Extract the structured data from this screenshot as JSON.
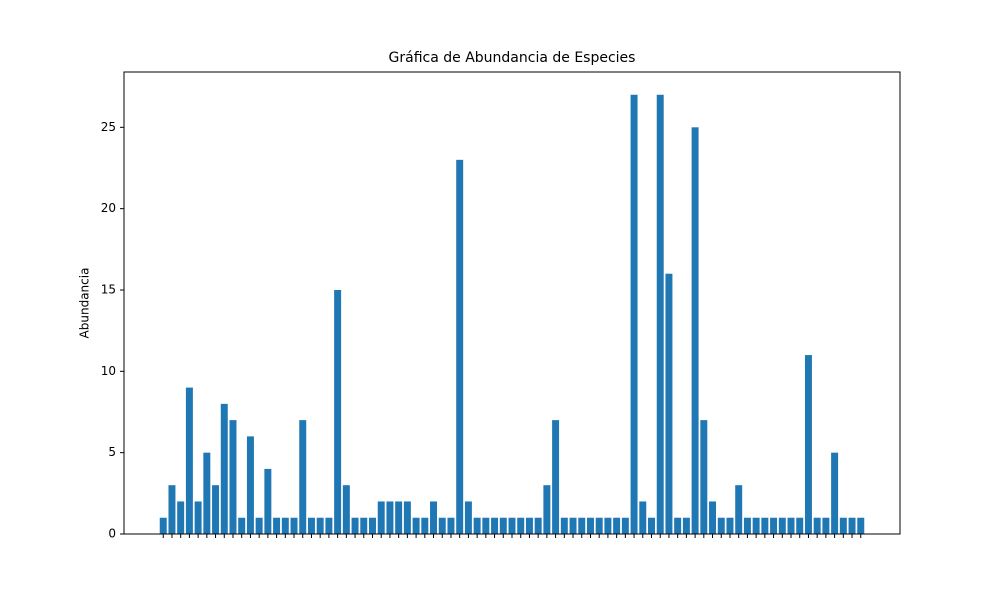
{
  "chart_data": {
    "type": "bar",
    "title": "Gráfica de Abundancia de Especies",
    "y_label": "Abundancia",
    "categories": [
      null,
      null,
      null,
      null,
      null,
      null,
      null,
      null,
      null,
      null,
      null,
      null,
      null,
      null,
      null,
      null,
      null,
      null,
      null,
      null,
      null,
      null,
      null,
      null,
      null,
      null,
      null,
      null,
      null,
      null,
      null,
      null,
      null,
      null,
      null,
      null,
      null,
      null,
      null,
      null,
      null,
      null,
      null,
      null,
      null,
      null,
      null,
      null,
      null,
      null,
      null,
      null,
      null,
      null,
      null,
      null,
      null,
      null,
      null,
      null,
      null,
      null,
      null,
      null,
      null,
      null,
      null,
      null,
      null,
      null,
      null,
      null,
      null,
      null,
      null,
      null,
      null,
      null,
      null,
      null,
      null
    ],
    "values": [
      1,
      3,
      2,
      9,
      2,
      5,
      3,
      8,
      7,
      1,
      6,
      1,
      4,
      1,
      1,
      1,
      7,
      1,
      1,
      1,
      15,
      3,
      1,
      1,
      1,
      2,
      2,
      2,
      2,
      1,
      1,
      2,
      1,
      1,
      23,
      2,
      1,
      1,
      1,
      1,
      1,
      1,
      1,
      1,
      3,
      7,
      1,
      1,
      1,
      1,
      1,
      1,
      1,
      1,
      27,
      2,
      1,
      27,
      16,
      1,
      1,
      25,
      7,
      2,
      1,
      1,
      3,
      1,
      1,
      1,
      1,
      1,
      1,
      1,
      11,
      1,
      1,
      5,
      1,
      1,
      1
    ],
    "color": "#1f77b4",
    "ylim": [
      0,
      28.4
    ],
    "yticks": [
      0,
      5,
      10,
      15,
      20,
      25
    ]
  }
}
